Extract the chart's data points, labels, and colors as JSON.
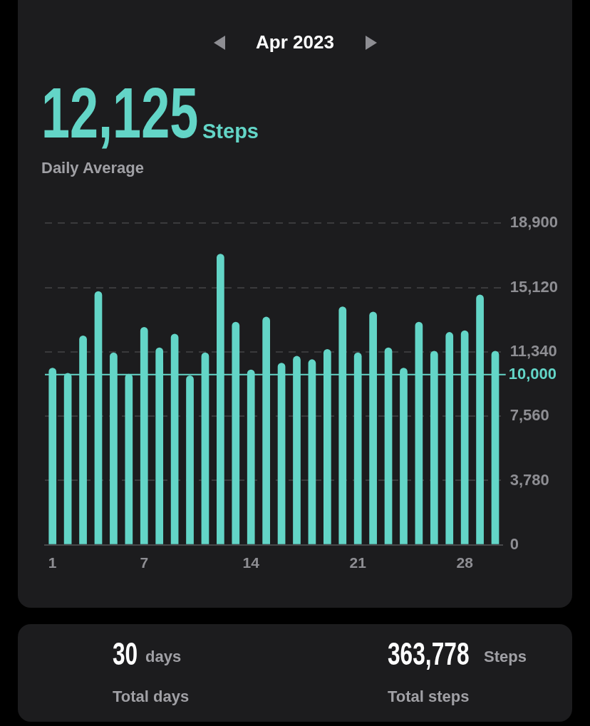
{
  "chart_data": {
    "type": "bar",
    "title": "Apr 2023",
    "categories": [
      "1",
      null,
      null,
      null,
      null,
      null,
      "7",
      null,
      null,
      null,
      null,
      null,
      null,
      "14",
      null,
      null,
      null,
      null,
      null,
      null,
      "21",
      null,
      null,
      null,
      null,
      null,
      null,
      "28",
      null,
      null
    ],
    "series": [
      {
        "color": "#63d5c7",
        "values": [
          10400,
          10100,
          12300,
          14900,
          11300,
          10050,
          12800,
          11600,
          12400,
          9950,
          11300,
          17100,
          13100,
          10300,
          13400,
          10700,
          11100,
          10900,
          11500,
          14000,
          11300,
          13700,
          11600,
          10400,
          13100,
          11400,
          12500,
          12600,
          14700,
          11400
        ]
      }
    ],
    "ylim": [
      0,
      18900
    ],
    "yticks": [
      0,
      {
        "value": 3780,
        "label": "3,780"
      },
      {
        "value": 7560,
        "label": "7,560"
      },
      {
        "value": 11340,
        "label": "11,340"
      },
      {
        "value": 15120,
        "label": "15,120"
      },
      {
        "value": 18900,
        "label": "18,900"
      }
    ],
    "ref_lines": [
      {
        "axis": "y",
        "value": 10000,
        "label": "10,000",
        "color": "#63d5c7"
      }
    ],
    "grid": "y",
    "legend": false,
    "annotations": [
      "12,125",
      "Steps",
      "Daily Average",
      "30",
      "days",
      "Total days",
      "363,778",
      "Steps",
      "Total steps"
    ]
  }
}
